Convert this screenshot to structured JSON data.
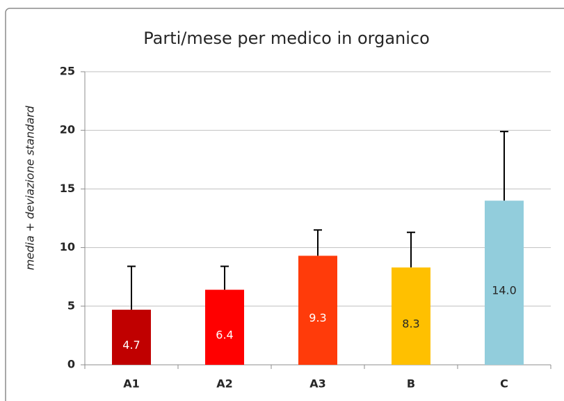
{
  "chart_data": {
    "type": "bar",
    "title": "Parti/mese per medico in organico",
    "y_label": "media + deviazione standard",
    "categories": [
      "A1",
      "A2",
      "A3",
      "B",
      "C"
    ],
    "values": [
      4.7,
      6.4,
      9.3,
      8.3,
      14.0
    ],
    "value_labels": [
      "4.7",
      "6.4",
      "9.3",
      "8.3",
      "14.0"
    ],
    "errors": [
      3.7,
      2.0,
      2.2,
      3.0,
      5.9
    ],
    "colors": [
      "#c00000",
      "#ff0000",
      "#ff3b0a",
      "#ffc000",
      "#92cddc"
    ],
    "value_label_colors": [
      "#ffffff",
      "#ffffff",
      "#ffffff",
      "#262626",
      "#262626"
    ],
    "ylim": [
      0,
      25
    ],
    "yticks": [
      0,
      5,
      10,
      15,
      20,
      25
    ],
    "grid": true
  }
}
